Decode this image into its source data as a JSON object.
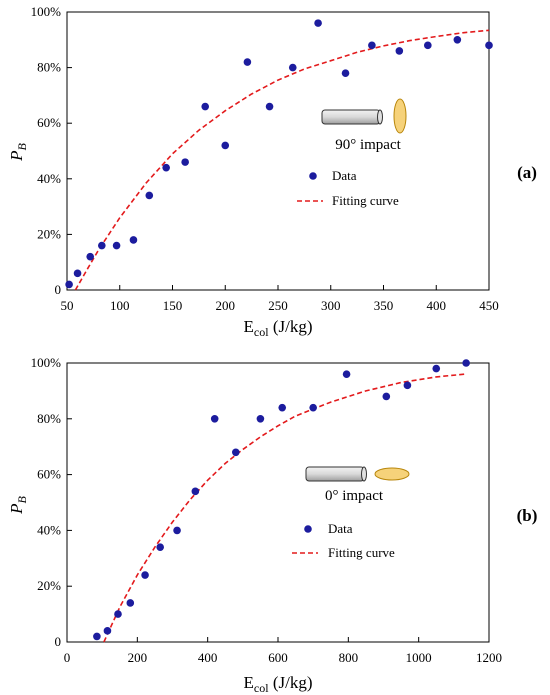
{
  "chart_data": [
    {
      "panel": "(a)",
      "type": "scatter",
      "xlabel_main": "E",
      "xlabel_sub": "col",
      "xlabel_unit": " (J/kg)",
      "ylabel_main": "P",
      "ylabel_sub": "B",
      "xlim": [
        50,
        450
      ],
      "ylim": [
        0,
        100
      ],
      "x_ticks": [
        "50",
        "100",
        "150",
        "200",
        "250",
        "300",
        "350",
        "400",
        "450"
      ],
      "y_ticks": [
        "0",
        "20%",
        "40%",
        "60%",
        "80%",
        "100%"
      ],
      "impact_label": "90° impact",
      "legend": {
        "data": "Data",
        "fit": "Fitting curve",
        "position": "right"
      },
      "series": [
        {
          "name": "Data",
          "x": [
            52,
            60,
            72,
            83,
            97,
            113,
            128,
            144,
            162,
            181,
            200,
            221,
            242,
            264,
            288,
            314,
            339,
            365,
            392,
            420,
            450
          ],
          "y": [
            2,
            6,
            12,
            16,
            16,
            18,
            34,
            44,
            46,
            66,
            52,
            82,
            66,
            80,
            96,
            78,
            88,
            86,
            88,
            90,
            88
          ]
        },
        {
          "name": "Fitting curve",
          "style": "dashed",
          "x": [
            58,
            70,
            80,
            100,
            125,
            150,
            175,
            200,
            225,
            250,
            275,
            300,
            325,
            350,
            375,
            400,
            425,
            450
          ],
          "y": [
            0,
            8,
            14.5,
            26,
            38.5,
            49,
            57.5,
            64.5,
            70.5,
            75.5,
            79.5,
            82.5,
            85.5,
            87.8,
            89.7,
            91.2,
            92.5,
            93.4
          ]
        }
      ]
    },
    {
      "panel": "(b)",
      "type": "scatter",
      "xlabel_main": "E",
      "xlabel_sub": "col",
      "xlabel_unit": " (J/kg)",
      "ylabel_main": "P",
      "ylabel_sub": "B",
      "xlim": [
        0,
        1200
      ],
      "ylim": [
        0,
        100
      ],
      "x_ticks": [
        "0",
        "200",
        "400",
        "600",
        "800",
        "1000",
        "1200"
      ],
      "y_ticks": [
        "0",
        "20%",
        "40%",
        "60%",
        "80%",
        "100%"
      ],
      "impact_label": "0° impact",
      "legend": {
        "data": "Data",
        "fit": "Fitting curve",
        "position": "right"
      },
      "series": [
        {
          "name": "Data",
          "x": [
            85,
            115,
            145,
            180,
            222,
            265,
            313,
            365,
            420,
            480,
            550,
            612,
            700,
            795,
            908,
            968,
            1050,
            1135
          ],
          "y": [
            2,
            4,
            10,
            14,
            24,
            34,
            40,
            54,
            80,
            68,
            80,
            84,
            84,
            96,
            88,
            92,
            98,
            100
          ]
        },
        {
          "name": "Fitting curve",
          "style": "dashed",
          "x": [
            105,
            150,
            200,
            250,
            300,
            350,
            400,
            450,
            500,
            550,
            600,
            650,
            700,
            750,
            800,
            850,
            900,
            950,
            1000,
            1050,
            1130
          ],
          "y": [
            0,
            12.5,
            24,
            34,
            43,
            51,
            58,
            64,
            69,
            73.5,
            77.5,
            81,
            83.5,
            86,
            88,
            90,
            91.5,
            93,
            94,
            95,
            96
          ]
        }
      ]
    }
  ]
}
